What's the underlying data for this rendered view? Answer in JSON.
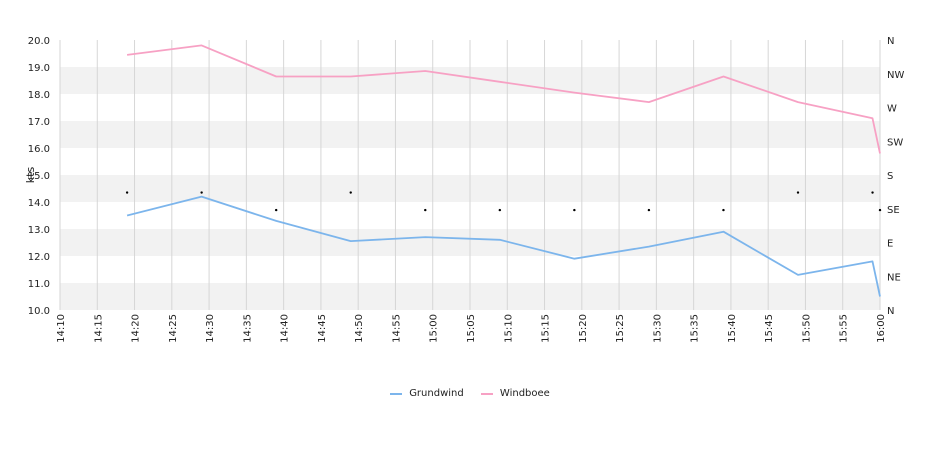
{
  "chart_data": {
    "type": "line",
    "ylabel": "kts",
    "ylim": [
      10,
      20
    ],
    "yticks": [
      "10.0",
      "11.0",
      "12.0",
      "13.0",
      "14.0",
      "15.0",
      "16.0",
      "17.0",
      "18.0",
      "19.0",
      "20.0"
    ],
    "xlim": [
      "14:10",
      "16:00"
    ],
    "xticks": [
      "14:10",
      "14:15",
      "14:20",
      "14:25",
      "14:30",
      "14:35",
      "14:40",
      "14:45",
      "14:50",
      "14:55",
      "15:00",
      "15:05",
      "15:10",
      "15:15",
      "15:20",
      "15:25",
      "15:30",
      "15:35",
      "15:40",
      "15:45",
      "15:50",
      "15:55",
      "16:00"
    ],
    "y2_ticks": [
      "N",
      "NE",
      "E",
      "SE",
      "S",
      "SW",
      "W",
      "NW",
      "N"
    ],
    "grid": true,
    "legend_position": "bottom",
    "series": [
      {
        "name": "Grundwind",
        "color": "#7cb5ec",
        "points": [
          [
            "14:19",
            13.5
          ],
          [
            "14:29",
            14.2
          ],
          [
            "14:39",
            13.3
          ],
          [
            "14:49",
            12.55
          ],
          [
            "14:59",
            12.7
          ],
          [
            "15:09",
            12.6
          ],
          [
            "15:19",
            11.9
          ],
          [
            "15:29",
            12.35
          ],
          [
            "15:39",
            12.9
          ],
          [
            "15:49",
            11.3
          ],
          [
            "15:59",
            11.8
          ],
          [
            "16:00",
            10.5
          ]
        ]
      },
      {
        "name": "Windboee",
        "color": "#f7a1c4",
        "points": [
          [
            "14:19",
            19.45
          ],
          [
            "14:29",
            19.8
          ],
          [
            "14:39",
            18.65
          ],
          [
            "14:49",
            18.65
          ],
          [
            "14:59",
            18.85
          ],
          [
            "15:09",
            18.45
          ],
          [
            "15:19",
            18.05
          ],
          [
            "15:29",
            17.7
          ],
          [
            "15:39",
            18.65
          ],
          [
            "15:49",
            17.7
          ],
          [
            "15:59",
            17.1
          ],
          [
            "16:00",
            15.8
          ]
        ]
      }
    ],
    "direction_points": [
      [
        "14:19",
        14.35
      ],
      [
        "14:29",
        14.35
      ],
      [
        "14:39",
        13.7
      ],
      [
        "14:49",
        14.35
      ],
      [
        "14:59",
        13.7
      ],
      [
        "15:09",
        13.7
      ],
      [
        "15:19",
        13.7
      ],
      [
        "15:29",
        13.7
      ],
      [
        "15:39",
        13.7
      ],
      [
        "15:49",
        14.35
      ],
      [
        "15:59",
        14.35
      ],
      [
        "16:00",
        13.7
      ]
    ]
  }
}
